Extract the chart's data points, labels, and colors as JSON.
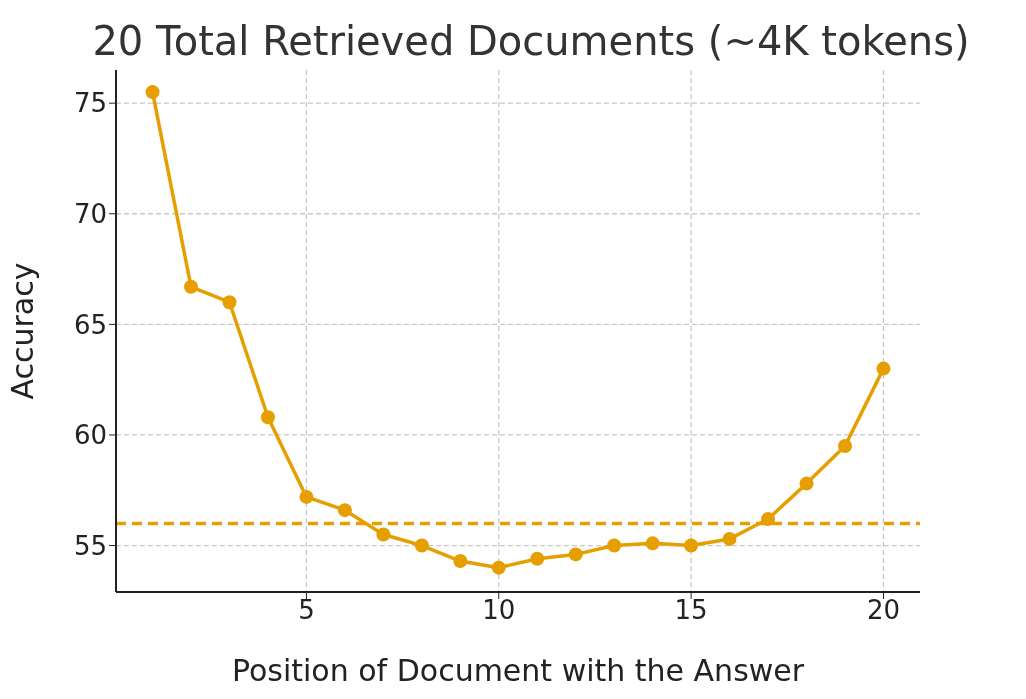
{
  "chart_data": {
    "type": "line",
    "title": "20 Total Retrieved Documents (~4K tokens)",
    "xlabel": "Position of Document with the Answer",
    "ylabel": "Accuracy",
    "x": [
      1,
      2,
      3,
      4,
      5,
      6,
      7,
      8,
      9,
      10,
      11,
      12,
      13,
      14,
      15,
      16,
      17,
      18,
      19,
      20
    ],
    "series": [
      {
        "color": "#e69f00",
        "values": [
          75.5,
          66.7,
          66.0,
          60.8,
          57.2,
          56.6,
          55.5,
          55.0,
          54.3,
          54.0,
          54.4,
          54.6,
          55.0,
          55.1,
          55.0,
          55.3,
          56.2,
          57.8,
          59.5,
          63.0
        ]
      }
    ],
    "ref_lines": [
      {
        "axis": "y",
        "value": 56.0,
        "color": "#e69f00",
        "line_style": "dashed"
      }
    ],
    "xlim": [
      0.05,
      20.95
    ],
    "xticks": [
      5,
      10,
      15,
      20
    ],
    "ylim": [
      52.9,
      76.5
    ],
    "yticks": [
      55,
      60,
      65,
      70,
      75
    ],
    "grid": true,
    "marker": "circle",
    "line_style": "solid",
    "legend": false
  }
}
